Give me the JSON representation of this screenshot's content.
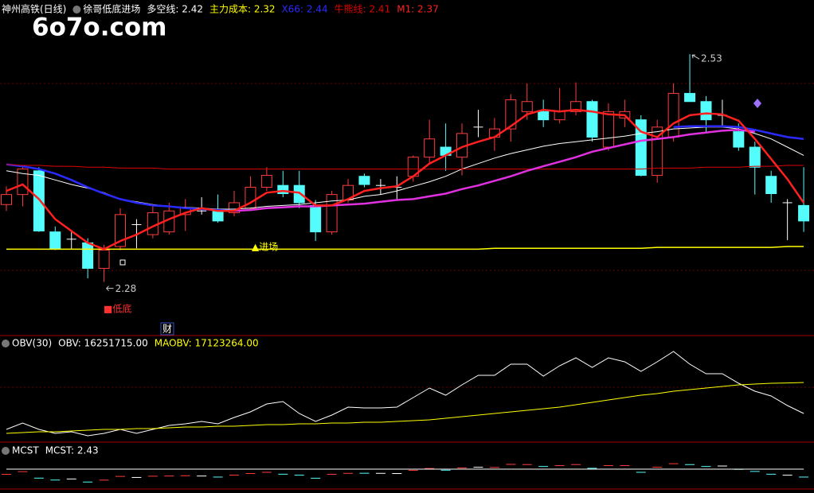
{
  "watermark": "6o7o.com",
  "chart_data": [
    {
      "type": "candlestick",
      "title": "神州高铁(日线)",
      "subtitle": "徐哥低底进场",
      "open": [
        2.365,
        2.376,
        2.402,
        2.335,
        2.327,
        2.323,
        2.295,
        2.319,
        2.343,
        2.332,
        2.335,
        2.354,
        2.358,
        2.358,
        2.356,
        2.361,
        2.384,
        2.386,
        2.386,
        2.364,
        2.335,
        2.37,
        2.396,
        2.386,
        2.384,
        2.396,
        2.417,
        2.428,
        2.417,
        2.45,
        2.439,
        2.448,
        2.467,
        2.467,
        2.458,
        2.467,
        2.478,
        2.428,
        2.46,
        2.458,
        2.397,
        2.439,
        2.487,
        2.478,
        2.463,
        2.445,
        2.428,
        2.396,
        2.367,
        2.364
      ],
      "high": [
        2.385,
        2.408,
        2.406,
        2.341,
        2.336,
        2.328,
        2.321,
        2.361,
        2.349,
        2.363,
        2.367,
        2.371,
        2.373,
        2.376,
        2.38,
        2.396,
        2.406,
        2.402,
        2.402,
        2.37,
        2.38,
        2.393,
        2.399,
        2.393,
        2.396,
        2.419,
        2.458,
        2.454,
        2.454,
        2.469,
        2.46,
        2.486,
        2.498,
        2.48,
        2.493,
        2.499,
        2.48,
        2.476,
        2.48,
        2.463,
        2.458,
        2.498,
        2.53,
        2.484,
        2.48,
        2.454,
        2.434,
        2.402,
        2.371,
        2.406
      ],
      "low": [
        2.358,
        2.363,
        2.335,
        2.315,
        2.316,
        2.284,
        2.28,
        2.315,
        2.317,
        2.328,
        2.332,
        2.336,
        2.354,
        2.345,
        2.352,
        2.358,
        2.38,
        2.373,
        2.361,
        2.325,
        2.332,
        2.367,
        2.384,
        2.376,
        2.371,
        2.39,
        2.41,
        2.402,
        2.397,
        2.439,
        2.424,
        2.434,
        2.458,
        2.45,
        2.454,
        2.463,
        2.434,
        2.424,
        2.45,
        2.396,
        2.389,
        2.434,
        2.478,
        2.445,
        2.45,
        2.424,
        2.376,
        2.367,
        2.326,
        2.335
      ],
      "close": [
        2.376,
        2.404,
        2.336,
        2.316,
        2.327,
        2.295,
        2.315,
        2.354,
        2.343,
        2.356,
        2.358,
        2.361,
        2.358,
        2.347,
        2.367,
        2.384,
        2.397,
        2.377,
        2.367,
        2.335,
        2.376,
        2.386,
        2.387,
        2.386,
        2.384,
        2.417,
        2.437,
        2.419,
        2.443,
        2.45,
        2.448,
        2.48,
        2.478,
        2.458,
        2.467,
        2.478,
        2.439,
        2.467,
        2.467,
        2.397,
        2.45,
        2.487,
        2.478,
        2.458,
        2.463,
        2.428,
        2.406,
        2.377,
        2.367,
        2.347
      ],
      "up_color": "#ff3c3c",
      "down_color": "#54fcfc",
      "flat_color": "#ffffff",
      "ylim": [
        2.223,
        2.572
      ],
      "series": [
        {
          "name": "多空线: 2.42",
          "color": "#ffffff",
          "width": 1,
          "values": [
            2.402,
            2.399,
            2.397,
            2.392,
            2.387,
            2.383,
            2.378,
            2.371,
            2.368,
            2.365,
            2.363,
            2.362,
            2.361,
            2.36,
            2.36,
            2.361,
            2.363,
            2.364,
            2.365,
            2.367,
            2.369,
            2.37,
            2.374,
            2.376,
            2.38,
            2.385,
            2.39,
            2.396,
            2.404,
            2.41,
            2.416,
            2.421,
            2.425,
            2.429,
            2.432,
            2.434,
            2.436,
            2.438,
            2.44,
            2.443,
            2.445,
            2.448,
            2.449,
            2.45,
            2.45,
            2.448,
            2.443,
            2.437,
            2.428,
            2.419
          ]
        },
        {
          "name": "主力成本: 2.32",
          "color": "#ffff00",
          "width": 1.5,
          "values": [
            2.316,
            2.316,
            2.316,
            2.316,
            2.316,
            2.316,
            2.316,
            2.316,
            2.316,
            2.316,
            2.316,
            2.316,
            2.316,
            2.316,
            2.316,
            2.316,
            2.316,
            2.316,
            2.316,
            2.316,
            2.316,
            2.316,
            2.316,
            2.316,
            2.316,
            2.316,
            2.316,
            2.316,
            2.316,
            2.316,
            2.317,
            2.317,
            2.317,
            2.317,
            2.317,
            2.317,
            2.317,
            2.317,
            2.317,
            2.317,
            2.318,
            2.318,
            2.318,
            2.318,
            2.318,
            2.318,
            2.318,
            2.318,
            2.319,
            2.319
          ]
        },
        {
          "name": "X66: 2.44",
          "color": "#2a2aff",
          "width": 2.5,
          "values": [
            2.409,
            2.407,
            2.404,
            2.399,
            2.392,
            2.384,
            2.377,
            2.371,
            2.367,
            2.364,
            2.363,
            2.361,
            2.36,
            2.359,
            2.358,
            null,
            null,
            null,
            null,
            null,
            null,
            null,
            null,
            null,
            null,
            null,
            null,
            null,
            null,
            null,
            null,
            null,
            null,
            null,
            null,
            null,
            null,
            null,
            null,
            null,
            null,
            2.45,
            2.451,
            2.451,
            2.451,
            2.45,
            2.447,
            2.443,
            2.439,
            2.437
          ]
        },
        {
          "name": "牛熊线: 2.41",
          "color": "#e00000",
          "width": 1,
          "values": [
            2.409,
            2.408,
            2.408,
            2.407,
            2.407,
            2.406,
            2.406,
            2.405,
            2.405,
            2.405,
            2.404,
            2.404,
            2.404,
            2.404,
            2.404,
            2.404,
            2.404,
            2.404,
            2.404,
            2.404,
            2.404,
            2.404,
            2.404,
            2.404,
            2.404,
            2.404,
            2.404,
            2.404,
            2.404,
            2.404,
            2.404,
            2.404,
            2.404,
            2.404,
            2.404,
            2.404,
            2.404,
            2.404,
            2.404,
            2.404,
            2.405,
            2.405,
            2.405,
            2.406,
            2.406,
            2.406,
            2.407,
            2.407,
            2.408,
            2.408
          ]
        },
        {
          "color": "#e030e0",
          "width": 2.5,
          "values": [
            null,
            null,
            null,
            null,
            null,
            null,
            null,
            null,
            null,
            null,
            null,
            null,
            null,
            null,
            2.358,
            2.359,
            2.361,
            2.362,
            2.363,
            2.363,
            2.364,
            2.365,
            2.366,
            2.368,
            2.37,
            2.371,
            2.374,
            2.377,
            2.382,
            2.386,
            2.391,
            2.396,
            2.402,
            2.407,
            2.412,
            2.417,
            2.423,
            2.427,
            2.431,
            2.435,
            2.437,
            2.439,
            2.442,
            2.444,
            2.446,
            2.447,
            2.445,
            null,
            null,
            null
          ]
        },
        {
          "name": "M1: 2.37",
          "color": "#ff2020",
          "width": 2.5,
          "values": [
            2.38,
            2.387,
            2.371,
            2.349,
            2.336,
            2.323,
            2.316,
            2.325,
            2.332,
            2.341,
            2.349,
            2.356,
            2.361,
            2.358,
            2.358,
            2.367,
            2.378,
            2.38,
            2.378,
            2.364,
            2.364,
            2.371,
            2.38,
            2.383,
            2.385,
            2.396,
            2.41,
            2.419,
            2.428,
            2.434,
            2.439,
            2.451,
            2.464,
            2.469,
            2.467,
            2.469,
            2.467,
            2.464,
            2.463,
            2.445,
            2.439,
            2.454,
            2.463,
            2.465,
            2.464,
            2.457,
            2.437,
            2.415,
            2.393,
            2.367
          ]
        }
      ],
      "annotations": [
        {
          "text": "2.53"
        },
        {
          "text": "2.28"
        },
        {
          "text": "▲进场"
        },
        {
          "text": "■低底"
        },
        {
          "text": "财"
        }
      ]
    },
    {
      "type": "line",
      "title": "OBV(30)",
      "ylim": [
        15470000,
        18375000
      ],
      "series": [
        {
          "name": "OBV: 16251715.00",
          "color": "#ffffff",
          "width": 1,
          "values": [
            15805000,
            15984000,
            15805000,
            15693000,
            15738000,
            15626000,
            15693000,
            15805000,
            15693000,
            15805000,
            15917000,
            15961000,
            16028000,
            15961000,
            16140000,
            16296000,
            16520000,
            16587000,
            16252000,
            16028000,
            16207000,
            16431000,
            16408000,
            16408000,
            16431000,
            16699000,
            16967000,
            16766000,
            17056000,
            17325000,
            17325000,
            17637000,
            17637000,
            17302000,
            17593000,
            17816000,
            17548000,
            17816000,
            17704000,
            17436000,
            17704000,
            17995000,
            17637000,
            17369000,
            17369000,
            17101000,
            16877000,
            16743000,
            16475000,
            16251715
          ]
        },
        {
          "name": "MAOBV: 17123264.00",
          "color": "#ffff00",
          "width": 1,
          "values": [
            15693000,
            15715000,
            15738000,
            15738000,
            15760000,
            15782000,
            15805000,
            15805000,
            15827000,
            15827000,
            15849000,
            15872000,
            15872000,
            15894000,
            15894000,
            15917000,
            15939000,
            15939000,
            15961000,
            15961000,
            15984000,
            15984000,
            16006000,
            16006000,
            16028000,
            16051000,
            16073000,
            16118000,
            16162000,
            16207000,
            16252000,
            16296000,
            16341000,
            16386000,
            16431000,
            16498000,
            16565000,
            16632000,
            16699000,
            16766000,
            16810000,
            16877000,
            16922000,
            16967000,
            17012000,
            17056000,
            17079000,
            17101000,
            17110000,
            17123264
          ]
        }
      ]
    },
    {
      "type": "line",
      "title": "MCST",
      "ylim": [
        2.23,
        2.68
      ],
      "price_ticks": true,
      "series": [
        {
          "name": "MCST: 2.43",
          "color": "#ffffff",
          "width": 1,
          "values": [
            2.43,
            2.43,
            2.43,
            2.43,
            2.43,
            2.43,
            2.43,
            2.43,
            2.43,
            2.43,
            2.43,
            2.43,
            2.43,
            2.43,
            2.43,
            2.43,
            2.43,
            2.43,
            2.43,
            2.43,
            2.43,
            2.43,
            2.43,
            2.43,
            2.43,
            2.43,
            2.43,
            2.43,
            2.43,
            2.43,
            2.43,
            2.43,
            2.43,
            2.43,
            2.43,
            2.43,
            2.43,
            2.43,
            2.43,
            2.43,
            2.43,
            2.43,
            2.43,
            2.43,
            2.43,
            2.43,
            2.43,
            2.43,
            2.43,
            2.43
          ]
        }
      ]
    }
  ]
}
